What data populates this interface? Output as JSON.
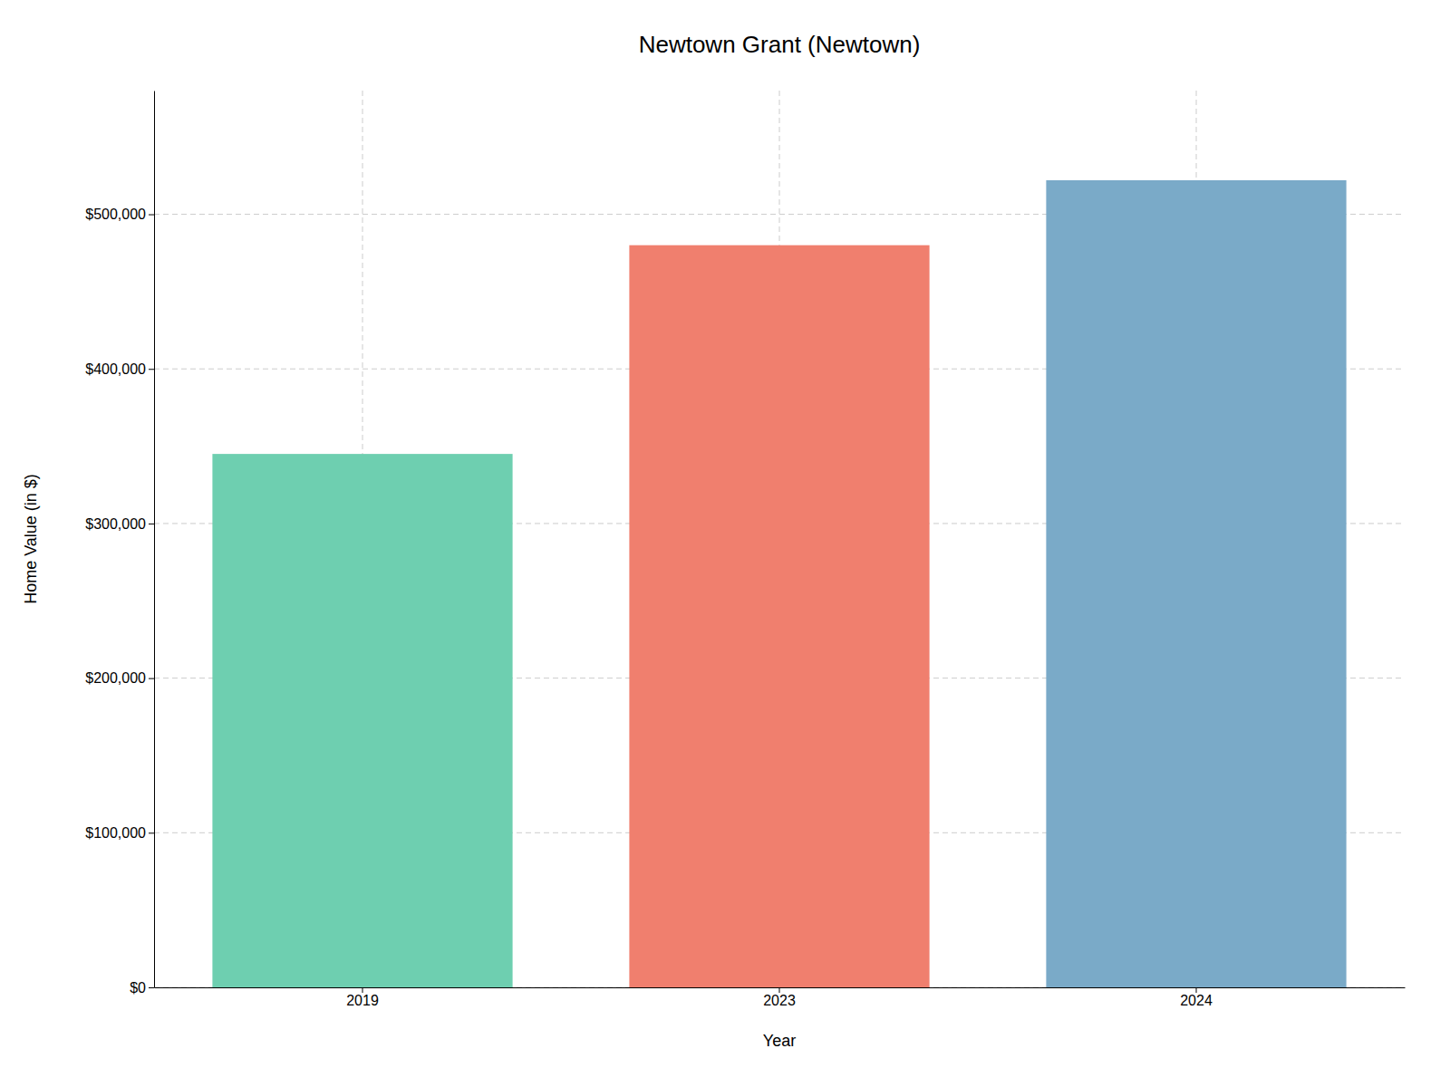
{
  "chart_data": {
    "type": "bar",
    "title": "Newtown Grant (Newtown)",
    "xlabel": "Year",
    "ylabel": "Home Value (in $)",
    "categories": [
      "2019",
      "2023",
      "2024"
    ],
    "values": [
      345000,
      480000,
      522000
    ],
    "colors": [
      "#6ecfb0",
      "#f07f6e",
      "#7aaac8"
    ],
    "ylim": [
      0,
      580000
    ],
    "yticks": [
      {
        "value": 0,
        "label": "$0"
      },
      {
        "value": 100000,
        "label": "$100,000"
      },
      {
        "value": 200000,
        "label": "$200,000"
      },
      {
        "value": 300000,
        "label": "$300,000"
      },
      {
        "value": 400000,
        "label": "$400,000"
      },
      {
        "value": 500000,
        "label": "$500,000"
      }
    ],
    "grid": true
  }
}
